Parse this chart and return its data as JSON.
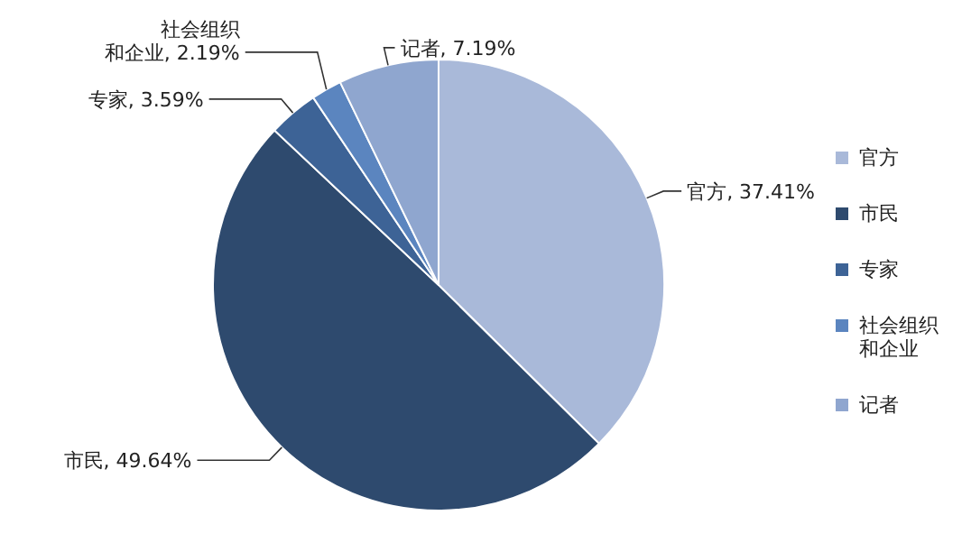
{
  "chart_data": {
    "type": "pie",
    "categories": [
      "官方",
      "市民",
      "专家",
      "社会组织和企业",
      "记者"
    ],
    "values": [
      37.41,
      49.64,
      3.59,
      2.19,
      7.19
    ],
    "colors": [
      "#a9b9d9",
      "#2e4a6e",
      "#3d6396",
      "#5b85bf",
      "#8fa6cf"
    ],
    "value_labels": [
      "官方, 37.41%",
      "市民, 49.64%",
      "专家, 3.59%",
      "社会组织和企业, 2.19%",
      "记者, 7.19%"
    ],
    "legend": "right"
  }
}
